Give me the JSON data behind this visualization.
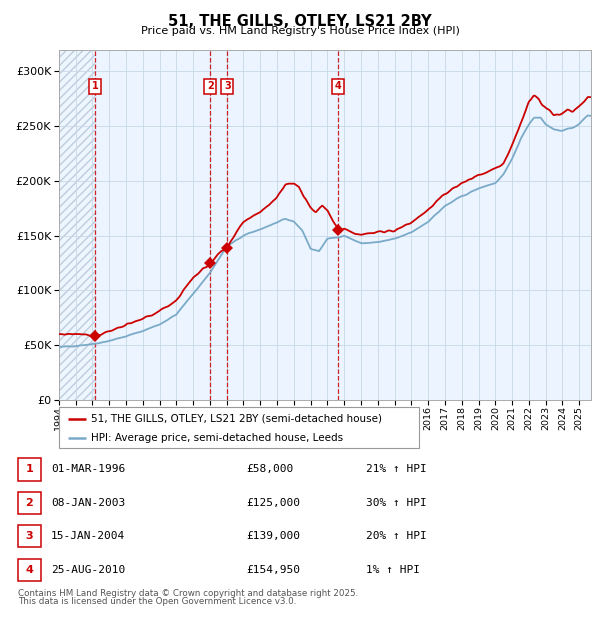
{
  "title": "51, THE GILLS, OTLEY, LS21 2BY",
  "subtitle": "Price paid vs. HM Land Registry's House Price Index (HPI)",
  "legend_line1": "51, THE GILLS, OTLEY, LS21 2BY (semi-detached house)",
  "legend_line2": "HPI: Average price, semi-detached house, Leeds",
  "transactions": [
    {
      "num": 1,
      "date": "01-MAR-1996",
      "price": 58000,
      "pct": "21%",
      "x_year": 1996.17
    },
    {
      "num": 2,
      "date": "08-JAN-2003",
      "price": 125000,
      "pct": "30%",
      "x_year": 2003.03
    },
    {
      "num": 3,
      "date": "15-JAN-2004",
      "price": 139000,
      "pct": "20%",
      "x_year": 2004.04
    },
    {
      "num": 4,
      "date": "25-AUG-2010",
      "price": 154950,
      "pct": "1%",
      "x_year": 2010.65
    }
  ],
  "footer1": "Contains HM Land Registry data © Crown copyright and database right 2025.",
  "footer2": "This data is licensed under the Open Government Licence v3.0.",
  "red_line_color": "#cc0000",
  "blue_line_color": "#7aaac8",
  "ylim": [
    0,
    320000
  ],
  "xlim_start": 1994.0,
  "xlim_end": 2025.7,
  "hpi_key_x": [
    1994.0,
    1995.0,
    1996.0,
    1997.0,
    1998.0,
    1999.0,
    2000.0,
    2001.0,
    2002.0,
    2003.0,
    2004.0,
    2005.0,
    2006.0,
    2007.0,
    2007.5,
    2008.0,
    2008.5,
    2009.0,
    2009.5,
    2010.0,
    2011.0,
    2012.0,
    2013.0,
    2014.0,
    2015.0,
    2016.0,
    2017.0,
    2018.0,
    2019.0,
    2019.5,
    2020.0,
    2020.5,
    2021.0,
    2021.5,
    2022.0,
    2022.3,
    2022.7,
    2023.0,
    2023.5,
    2024.0,
    2024.5,
    2025.0,
    2025.5
  ],
  "hpi_key_y": [
    48000,
    49500,
    51000,
    54000,
    58000,
    63000,
    69000,
    78000,
    97000,
    116000,
    140000,
    150000,
    156000,
    162000,
    165000,
    163000,
    155000,
    138000,
    136000,
    147000,
    150000,
    143000,
    144000,
    147000,
    153000,
    163000,
    177000,
    186000,
    193000,
    196000,
    198000,
    206000,
    220000,
    238000,
    252000,
    258000,
    258000,
    252000,
    247000,
    246000,
    248000,
    252000,
    260000
  ],
  "prop_key_x": [
    1994.0,
    1995.5,
    1996.17,
    1997.0,
    1998.0,
    1999.0,
    2000.0,
    2001.0,
    2002.0,
    2002.5,
    2003.03,
    2003.5,
    2004.04,
    2005.0,
    2006.0,
    2007.0,
    2007.5,
    2008.0,
    2008.3,
    2008.6,
    2009.0,
    2009.3,
    2009.7,
    2010.0,
    2010.3,
    2010.65,
    2011.0,
    2011.5,
    2012.0,
    2013.0,
    2014.0,
    2015.0,
    2016.0,
    2017.0,
    2018.0,
    2019.0,
    2019.5,
    2020.0,
    2020.5,
    2021.0,
    2021.5,
    2022.0,
    2022.3,
    2022.6,
    2022.8,
    2023.0,
    2023.5,
    2024.0,
    2024.3,
    2024.6,
    2025.0,
    2025.5
  ],
  "prop_key_y": [
    60000,
    60500,
    58000,
    63000,
    68000,
    74000,
    81000,
    91000,
    112000,
    118000,
    125000,
    133000,
    139000,
    163000,
    172000,
    185000,
    197000,
    198000,
    195000,
    185000,
    176000,
    172000,
    178000,
    174000,
    164000,
    154950,
    157000,
    153000,
    151000,
    153000,
    155000,
    162000,
    174000,
    188000,
    198000,
    205000,
    208000,
    212000,
    216000,
    232000,
    252000,
    272000,
    278000,
    276000,
    270000,
    267000,
    260000,
    262000,
    265000,
    263000,
    268000,
    276000
  ]
}
